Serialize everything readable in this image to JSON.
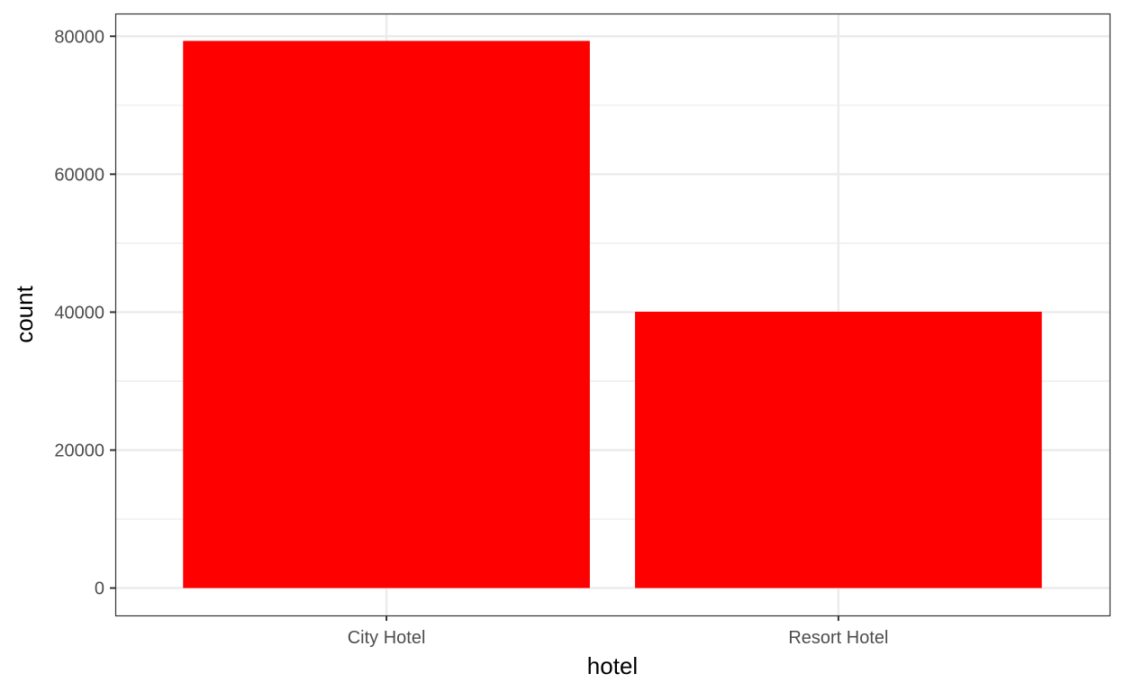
{
  "chart_data": {
    "type": "bar",
    "categories": [
      "City Hotel",
      "Resort Hotel"
    ],
    "values": [
      79330,
      40060
    ],
    "xlabel": "hotel",
    "ylabel": "count",
    "ylim": [
      -3970,
      83300
    ],
    "y_ticks": [
      0,
      20000,
      40000,
      60000,
      80000
    ],
    "y_tick_labels": [
      "0",
      "20000",
      "40000",
      "60000",
      "80000"
    ],
    "y_minor_ticks": [
      10000,
      30000,
      50000,
      70000
    ],
    "grid": true,
    "legend": "none",
    "colors": {
      "bar": "#ff0000",
      "grid": "#ebebeb",
      "panel_border": "#333333",
      "tick_text": "#4d4d4d",
      "axis_title": "#000000",
      "background": "#ffffff"
    }
  }
}
